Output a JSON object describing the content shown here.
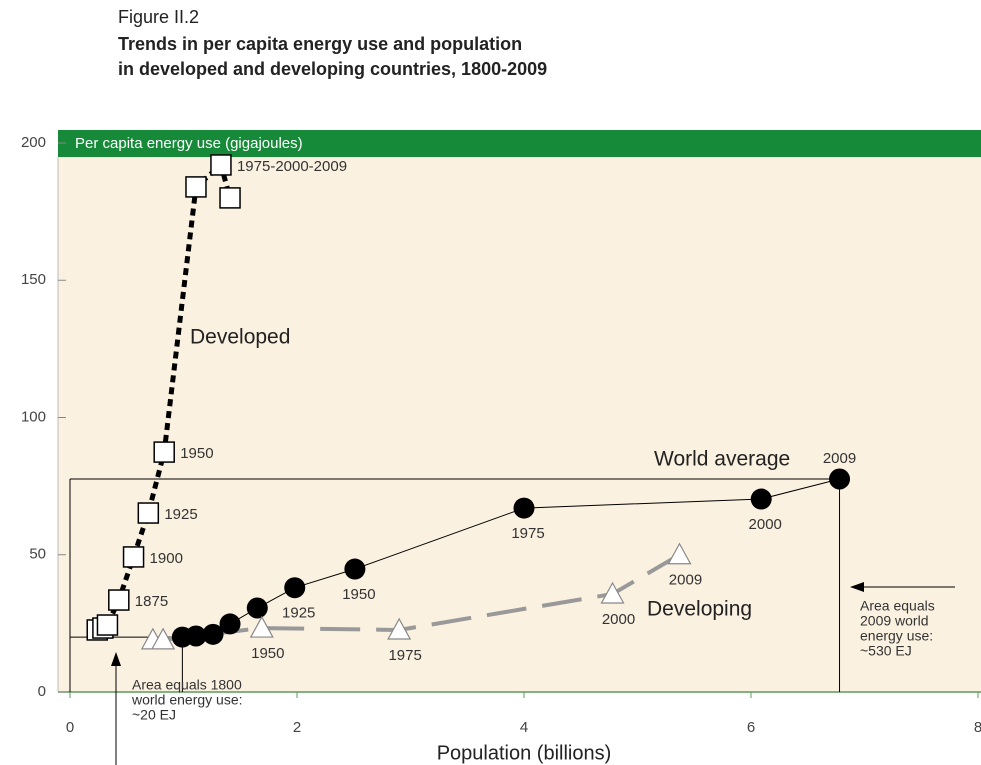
{
  "chart_data": {
    "type": "scatter",
    "figure_label": "Figure II.2",
    "title": [
      "Trends in per capita energy use and population",
      "in developed and developing countries, 1800-2009"
    ],
    "y_label": "Per capita energy use (gigajoules)",
    "x_label": "Population (billions)",
    "xlim": [
      0,
      8
    ],
    "xticks": [
      0,
      2,
      4,
      6,
      8
    ],
    "ylim": [
      0,
      200
    ],
    "yticks": [
      0,
      50,
      100,
      150,
      200
    ],
    "series": [
      {
        "name": "Developed",
        "color": "#000000",
        "marker": "square",
        "line": "dotted",
        "x": [
          0.24,
          0.29,
          0.33,
          0.43,
          0.56,
          0.69,
          0.83,
          1.11,
          1.33,
          1.41
        ],
        "values": [
          22.6,
          23.3,
          24.4,
          33.5,
          49.2,
          65.2,
          87.4,
          184,
          192,
          180
        ],
        "point_labels": [
          null,
          null,
          null,
          "1875",
          "1900",
          "1925",
          "1950",
          null,
          "1975-2000-2009",
          null
        ]
      },
      {
        "name": "World average",
        "color": "#000000",
        "marker": "circle",
        "line": "solid",
        "x": [
          0.99,
          1.11,
          1.26,
          1.41,
          1.65,
          1.98,
          2.51,
          4.0,
          6.09,
          6.78
        ],
        "values": [
          20,
          20.4,
          21,
          24.8,
          30.6,
          38,
          44.8,
          67,
          70.3,
          77.6
        ],
        "point_labels": [
          null,
          null,
          null,
          null,
          null,
          "1925",
          "1950",
          "1975",
          "2000",
          "2009"
        ]
      },
      {
        "name": "Developing",
        "color": "#999999",
        "marker": "triangle",
        "line": "dashed",
        "x": [
          0.73,
          0.82,
          1.69,
          2.9,
          4.78,
          5.37
        ],
        "values": [
          19,
          19,
          23.3,
          22.6,
          35.7,
          50
        ],
        "point_labels": [
          null,
          null,
          "1950",
          "1975",
          "2000",
          "2009"
        ]
      }
    ],
    "notes": [
      [
        "Area equals 1800",
        "world energy use:",
        "~20 EJ"
      ],
      [
        "Area equals",
        "2009 world",
        "energy use:",
        "~530 EJ"
      ]
    ]
  }
}
